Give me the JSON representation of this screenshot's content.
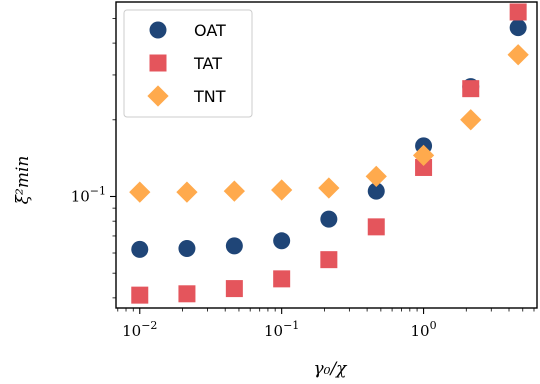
{
  "chart_data": {
    "type": "scatter",
    "xscale": "log",
    "yscale": "log",
    "xlim": [
      0.0068,
      6.3
    ],
    "ylim": [
      0.0365,
      0.58
    ],
    "xlabel": "γ₀/χ",
    "ylabel": "ξ²min",
    "xticks": [
      {
        "value": 0.01,
        "base": "10",
        "exp": "−2"
      },
      {
        "value": 0.1,
        "base": "10",
        "exp": "−1"
      },
      {
        "value": 1,
        "base": "10",
        "exp": "0"
      }
    ],
    "yticks": [
      {
        "value": 0.1,
        "base": "10",
        "exp": "−1"
      }
    ],
    "grid": false,
    "legend_position": "top-left",
    "series": [
      {
        "name": "OAT",
        "marker": "circle",
        "color": "#1f4577",
        "x": [
          0.01,
          0.0215,
          0.0464,
          0.1,
          0.215,
          0.464,
          1.0,
          2.15,
          4.64
        ],
        "y": [
          0.062,
          0.0625,
          0.064,
          0.067,
          0.0815,
          0.105,
          0.158,
          0.27,
          0.46
        ]
      },
      {
        "name": "TAT",
        "marker": "square",
        "color": "#e4555c",
        "x": [
          0.01,
          0.0215,
          0.0464,
          0.1,
          0.215,
          0.464,
          1.0,
          2.15,
          4.64
        ],
        "y": [
          0.041,
          0.0415,
          0.0435,
          0.0475,
          0.0565,
          0.076,
          0.13,
          0.265,
          0.53
        ]
      },
      {
        "name": "TNT",
        "marker": "diamond",
        "color": "#ffaa4d",
        "x": [
          0.01,
          0.0215,
          0.0464,
          0.1,
          0.215,
          0.464,
          1.0,
          2.15,
          4.64
        ],
        "y": [
          0.104,
          0.104,
          0.105,
          0.106,
          0.108,
          0.12,
          0.145,
          0.2,
          0.36
        ]
      }
    ]
  }
}
